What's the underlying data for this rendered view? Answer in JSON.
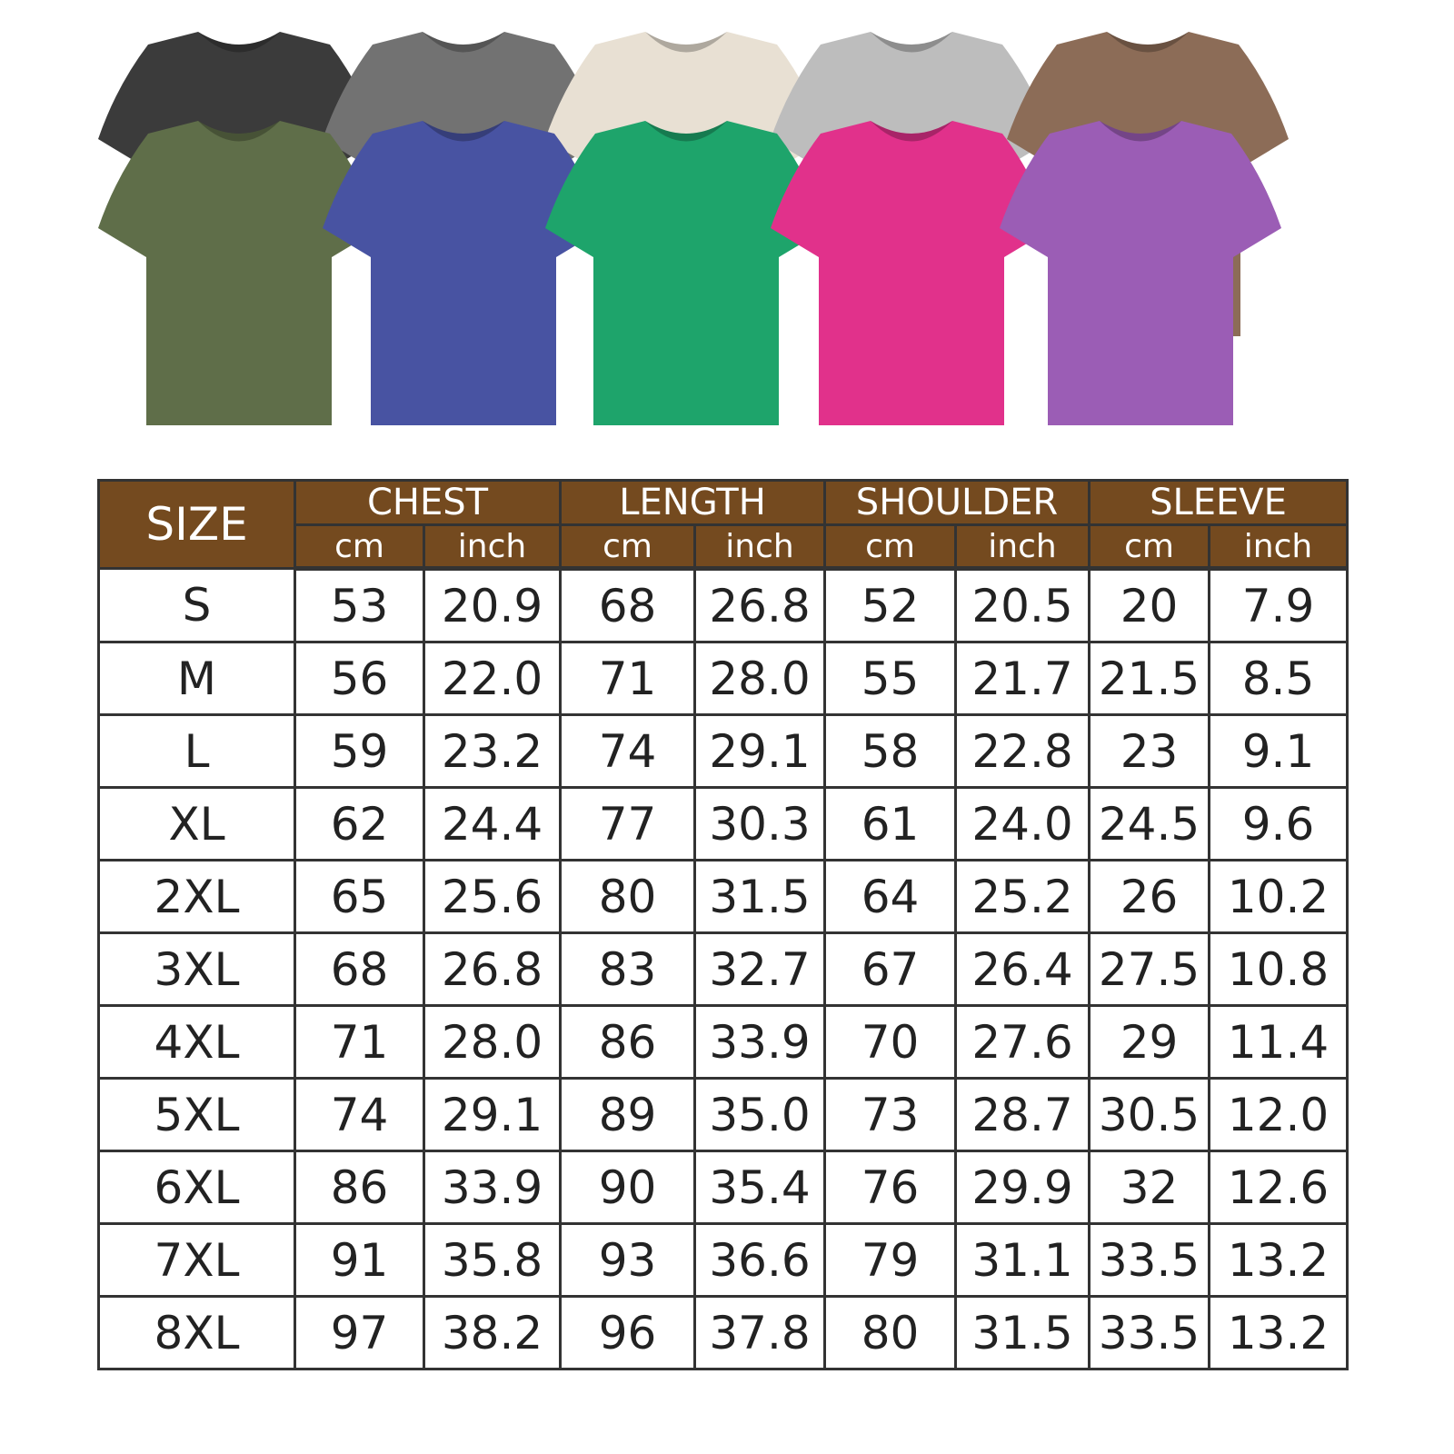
{
  "shirts": {
    "back_row": [
      {
        "color_hex": "#3b3b3b"
      },
      {
        "color_hex": "#727272"
      },
      {
        "color_hex": "#e8e0d3"
      },
      {
        "color_hex": "#bdbdbd"
      },
      {
        "color_hex": "#8c6c57"
      }
    ],
    "front_row": [
      {
        "color_hex": "#5f6e49"
      },
      {
        "color_hex": "#4853a2"
      },
      {
        "color_hex": "#1ea46b"
      },
      {
        "color_hex": "#e1318b"
      },
      {
        "color_hex": "#9b5db5"
      }
    ]
  },
  "header_color": "#744a1f",
  "table": {
    "size_header": "SIZE",
    "groups": [
      "CHEST",
      "LENGTH",
      "SHOULDER",
      "SLEEVE"
    ],
    "units": [
      "cm",
      "inch"
    ],
    "rows": [
      {
        "size": "S",
        "values": [
          "53",
          "20.9",
          "68",
          "26.8",
          "52",
          "20.5",
          "20",
          "7.9"
        ]
      },
      {
        "size": "M",
        "values": [
          "56",
          "22.0",
          "71",
          "28.0",
          "55",
          "21.7",
          "21.5",
          "8.5"
        ]
      },
      {
        "size": "L",
        "values": [
          "59",
          "23.2",
          "74",
          "29.1",
          "58",
          "22.8",
          "23",
          "9.1"
        ]
      },
      {
        "size": "XL",
        "values": [
          "62",
          "24.4",
          "77",
          "30.3",
          "61",
          "24.0",
          "24.5",
          "9.6"
        ]
      },
      {
        "size": "2XL",
        "values": [
          "65",
          "25.6",
          "80",
          "31.5",
          "64",
          "25.2",
          "26",
          "10.2"
        ]
      },
      {
        "size": "3XL",
        "values": [
          "68",
          "26.8",
          "83",
          "32.7",
          "67",
          "26.4",
          "27.5",
          "10.8"
        ]
      },
      {
        "size": "4XL",
        "values": [
          "71",
          "28.0",
          "86",
          "33.9",
          "70",
          "27.6",
          "29",
          "11.4"
        ]
      },
      {
        "size": "5XL",
        "values": [
          "74",
          "29.1",
          "89",
          "35.0",
          "73",
          "28.7",
          "30.5",
          "12.0"
        ]
      },
      {
        "size": "6XL",
        "values": [
          "86",
          "33.9",
          "90",
          "35.4",
          "76",
          "29.9",
          "32",
          "12.6"
        ]
      },
      {
        "size": "7XL",
        "values": [
          "91",
          "35.8",
          "93",
          "36.6",
          "79",
          "31.1",
          "33.5",
          "13.2"
        ]
      },
      {
        "size": "8XL",
        "values": [
          "97",
          "38.2",
          "96",
          "37.8",
          "80",
          "31.5",
          "33.5",
          "13.2"
        ]
      }
    ]
  }
}
